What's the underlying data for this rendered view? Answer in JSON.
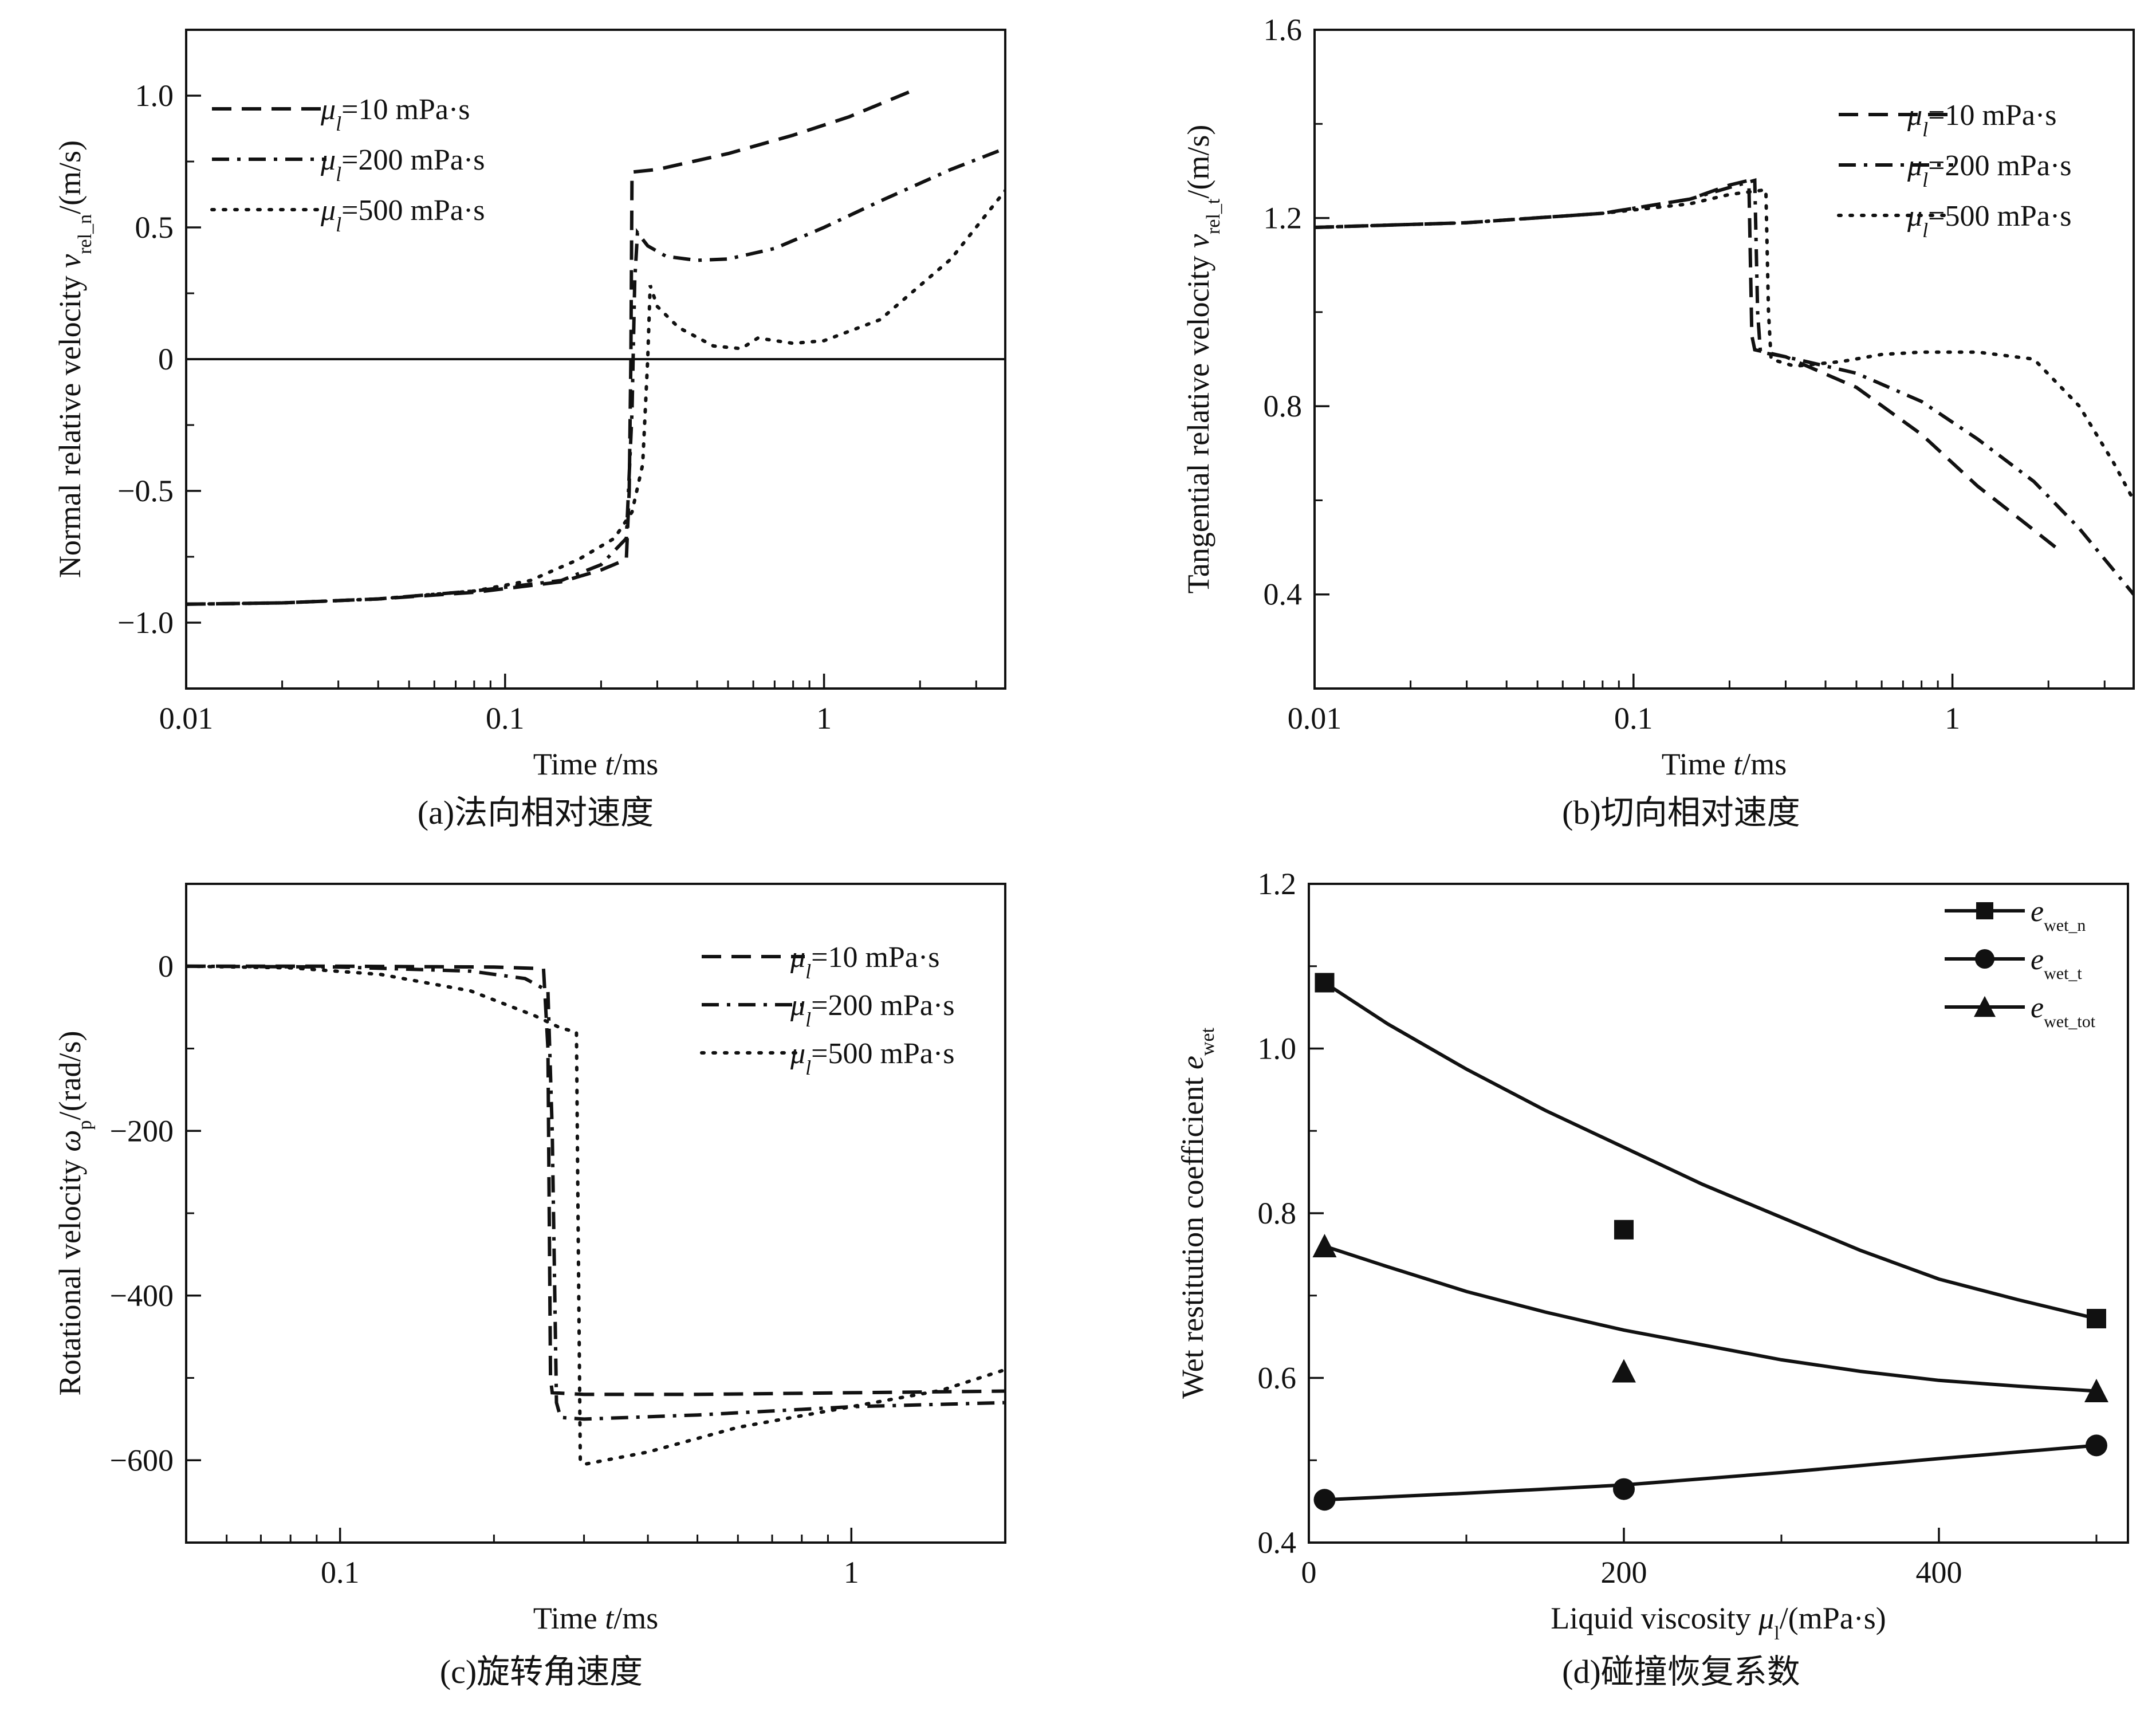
{
  "chart_data": [
    {
      "id": "a",
      "type": "line",
      "caption": "(a)法向相对速度",
      "xscale": "log",
      "xlim": [
        0.01,
        3.7
      ],
      "ylim": [
        -1.25,
        1.25
      ],
      "xticks": [
        0.01,
        0.1,
        1
      ],
      "xtick_labels": [
        "0.01",
        "0.1",
        "1"
      ],
      "yticks": [
        -1.0,
        -0.5,
        0,
        0.5,
        1.0
      ],
      "ytick_labels": [
        "−1.0",
        "−0.5",
        "0",
        "0.5",
        "1.0"
      ],
      "xlabel": {
        "pre": "Time ",
        "var": "t",
        "post": "/ms"
      },
      "ylabel": {
        "pre": "Normal relative velocity ",
        "var": "v",
        "sub": "rel_n",
        "post": "/(m/s)"
      },
      "legend_position": "top-left",
      "reference_line": 0,
      "series": [
        {
          "name": "μl=10 mPa·s",
          "legend": {
            "var": "μ",
            "sub": "l",
            "rest": "=10 mPa·s"
          },
          "style": "dash",
          "points": [
            [
              0.01,
              -0.93
            ],
            [
              0.02,
              -0.925
            ],
            [
              0.04,
              -0.91
            ],
            [
              0.08,
              -0.885
            ],
            [
              0.15,
              -0.845
            ],
            [
              0.2,
              -0.8
            ],
            [
              0.24,
              -0.76
            ],
            [
              0.245,
              -0.5
            ],
            [
              0.248,
              0.0
            ],
            [
              0.25,
              0.71
            ],
            [
              0.3,
              0.72
            ],
            [
              0.5,
              0.78
            ],
            [
              0.8,
              0.85
            ],
            [
              1.2,
              0.92
            ],
            [
              1.9,
              1.02
            ]
          ]
        },
        {
          "name": "μl=200 mPa·s",
          "legend": {
            "var": "μ",
            "sub": "l",
            "rest": "=200 mPa·s"
          },
          "style": "dashdot",
          "points": [
            [
              0.01,
              -0.93
            ],
            [
              0.02,
              -0.925
            ],
            [
              0.04,
              -0.91
            ],
            [
              0.08,
              -0.88
            ],
            [
              0.15,
              -0.84
            ],
            [
              0.2,
              -0.78
            ],
            [
              0.24,
              -0.68
            ],
            [
              0.25,
              -0.2
            ],
            [
              0.255,
              0.3
            ],
            [
              0.26,
              0.48
            ],
            [
              0.28,
              0.43
            ],
            [
              0.32,
              0.39
            ],
            [
              0.4,
              0.375
            ],
            [
              0.5,
              0.38
            ],
            [
              0.7,
              0.42
            ],
            [
              1.0,
              0.5
            ],
            [
              1.5,
              0.6
            ],
            [
              2.5,
              0.72
            ],
            [
              3.7,
              0.8
            ]
          ]
        },
        {
          "name": "μl=500 mPa·s",
          "legend": {
            "var": "μ",
            "sub": "l",
            "rest": "=500 mPa·s"
          },
          "style": "dot",
          "points": [
            [
              0.01,
              -0.93
            ],
            [
              0.02,
              -0.925
            ],
            [
              0.04,
              -0.91
            ],
            [
              0.08,
              -0.88
            ],
            [
              0.12,
              -0.84
            ],
            [
              0.17,
              -0.76
            ],
            [
              0.22,
              -0.68
            ],
            [
              0.25,
              -0.58
            ],
            [
              0.27,
              -0.4
            ],
            [
              0.28,
              0.0
            ],
            [
              0.285,
              0.28
            ],
            [
              0.3,
              0.2
            ],
            [
              0.35,
              0.12
            ],
            [
              0.45,
              0.05
            ],
            [
              0.55,
              0.04
            ],
            [
              0.62,
              0.08
            ],
            [
              0.8,
              0.06
            ],
            [
              1.0,
              0.07
            ],
            [
              1.5,
              0.15
            ],
            [
              2.5,
              0.38
            ],
            [
              3.7,
              0.64
            ]
          ]
        }
      ]
    },
    {
      "id": "b",
      "type": "line",
      "caption": "(b)切向相对速度",
      "xscale": "log",
      "xlim": [
        0.01,
        3.7
      ],
      "ylim": [
        0.2,
        1.6
      ],
      "xticks": [
        0.01,
        0.1,
        1
      ],
      "xtick_labels": [
        "0.01",
        "0.1",
        "1"
      ],
      "yticks": [
        0.4,
        0.8,
        1.2,
        1.6
      ],
      "ytick_labels": [
        "0.4",
        "0.8",
        "1.2",
        "1.6"
      ],
      "xlabel": {
        "pre": "Time ",
        "var": "t",
        "post": "/ms"
      },
      "ylabel": {
        "pre": "Tangential relative velocity ",
        "var": "v",
        "sub": "rel_t",
        "post": "/(m/s)"
      },
      "legend_position": "top-right",
      "series": [
        {
          "name": "μl=10 mPa·s",
          "legend": {
            "var": "μ",
            "sub": "l",
            "rest": "=10 mPa·s"
          },
          "style": "dash",
          "points": [
            [
              0.01,
              1.18
            ],
            [
              0.03,
              1.19
            ],
            [
              0.08,
              1.21
            ],
            [
              0.15,
              1.24
            ],
            [
              0.2,
              1.27
            ],
            [
              0.23,
              1.28
            ],
            [
              0.235,
              0.95
            ],
            [
              0.24,
              0.92
            ],
            [
              0.3,
              0.905
            ],
            [
              0.5,
              0.84
            ],
            [
              0.8,
              0.74
            ],
            [
              1.2,
              0.63
            ],
            [
              1.7,
              0.55
            ],
            [
              2.2,
              0.49
            ]
          ]
        },
        {
          "name": "μl=200 mPa·s",
          "legend": {
            "var": "μ",
            "sub": "l",
            "rest": "=200 mPa·s"
          },
          "style": "dashdot",
          "points": [
            [
              0.01,
              1.18
            ],
            [
              0.03,
              1.19
            ],
            [
              0.08,
              1.21
            ],
            [
              0.15,
              1.24
            ],
            [
              0.2,
              1.265
            ],
            [
              0.24,
              1.28
            ],
            [
              0.245,
              1.0
            ],
            [
              0.25,
              0.915
            ],
            [
              0.3,
              0.905
            ],
            [
              0.5,
              0.87
            ],
            [
              0.8,
              0.81
            ],
            [
              1.2,
              0.73
            ],
            [
              1.8,
              0.64
            ],
            [
              2.5,
              0.54
            ],
            [
              3.7,
              0.4
            ]
          ]
        },
        {
          "name": "μl=500 mPa·s",
          "legend": {
            "var": "μ",
            "sub": "l",
            "rest": "=500 mPa·s"
          },
          "style": "dot",
          "points": [
            [
              0.01,
              1.18
            ],
            [
              0.03,
              1.19
            ],
            [
              0.08,
              1.21
            ],
            [
              0.15,
              1.23
            ],
            [
              0.2,
              1.25
            ],
            [
              0.26,
              1.26
            ],
            [
              0.265,
              1.0
            ],
            [
              0.27,
              0.9
            ],
            [
              0.32,
              0.885
            ],
            [
              0.45,
              0.895
            ],
            [
              0.6,
              0.91
            ],
            [
              0.8,
              0.915
            ],
            [
              1.2,
              0.915
            ],
            [
              1.8,
              0.9
            ],
            [
              2.5,
              0.8
            ],
            [
              3.2,
              0.68
            ],
            [
              3.7,
              0.6
            ]
          ]
        }
      ]
    },
    {
      "id": "c",
      "type": "line",
      "caption": "(c)旋转角速度",
      "xscale": "log",
      "xlim": [
        0.05,
        2.0
      ],
      "ylim": [
        -700,
        100
      ],
      "xticks": [
        0.1,
        1
      ],
      "xtick_labels": [
        "0.1",
        "1"
      ],
      "yticks": [
        -600,
        -400,
        -200,
        0
      ],
      "ytick_labels": [
        "−600",
        "−400",
        "−200",
        "0"
      ],
      "xlabel": {
        "pre": "Time ",
        "var": "t",
        "post": "/ms"
      },
      "ylabel": {
        "pre": "Rotational velocity ",
        "var": "ω",
        "sub": "p",
        "post": "/(rad/s)"
      },
      "legend_position": "top-right",
      "series": [
        {
          "name": "μl=10 mPa·s",
          "legend": {
            "var": "μ",
            "sub": "l",
            "rest": "=10 mPa·s"
          },
          "style": "dash",
          "points": [
            [
              0.05,
              0
            ],
            [
              0.1,
              0
            ],
            [
              0.2,
              -1
            ],
            [
              0.25,
              -3
            ],
            [
              0.255,
              -100
            ],
            [
              0.258,
              -500
            ],
            [
              0.26,
              -518
            ],
            [
              0.3,
              -520
            ],
            [
              0.5,
              -520
            ],
            [
              1.0,
              -518
            ],
            [
              2.0,
              -516
            ]
          ]
        },
        {
          "name": "μl=200 mPa·s",
          "legend": {
            "var": "μ",
            "sub": "l",
            "rest": "=200 mPa·s"
          },
          "style": "dashdot",
          "points": [
            [
              0.05,
              0
            ],
            [
              0.1,
              -1
            ],
            [
              0.18,
              -6
            ],
            [
              0.23,
              -15
            ],
            [
              0.255,
              -30
            ],
            [
              0.26,
              -200
            ],
            [
              0.265,
              -530
            ],
            [
              0.27,
              -548
            ],
            [
              0.3,
              -550
            ],
            [
              0.5,
              -545
            ],
            [
              1.0,
              -535
            ],
            [
              2.0,
              -530
            ]
          ]
        },
        {
          "name": "μl=500 mPa·s",
          "legend": {
            "var": "μ",
            "sub": "l",
            "rest": "=500 mPa·s"
          },
          "style": "dot",
          "points": [
            [
              0.05,
              0
            ],
            [
              0.08,
              -2
            ],
            [
              0.12,
              -10
            ],
            [
              0.18,
              -30
            ],
            [
              0.24,
              -60
            ],
            [
              0.27,
              -75
            ],
            [
              0.29,
              -80
            ],
            [
              0.292,
              -300
            ],
            [
              0.295,
              -600
            ],
            [
              0.3,
              -605
            ],
            [
              0.4,
              -590
            ],
            [
              0.6,
              -560
            ],
            [
              1.0,
              -535
            ],
            [
              1.5,
              -515
            ],
            [
              2.0,
              -490
            ]
          ]
        }
      ]
    },
    {
      "id": "d",
      "type": "scatter",
      "caption": "(d)碰撞恢复系数",
      "xscale": "linear",
      "xlim": [
        0,
        520
      ],
      "ylim": [
        0.4,
        1.2
      ],
      "xticks": [
        0,
        200,
        400
      ],
      "xtick_labels": [
        "0",
        "200",
        "400"
      ],
      "yticks": [
        0.4,
        0.6,
        0.8,
        1.0,
        1.2
      ],
      "ytick_labels": [
        "0.4",
        "0.6",
        "0.8",
        "1.0",
        "1.2"
      ],
      "xlabel": {
        "pre": "Liquid viscosity ",
        "var": "μ",
        "sub": "l",
        "post": "/(mPa·s)"
      },
      "ylabel": {
        "pre": "Wet restitution coefficient ",
        "var": "e",
        "sub": "wet",
        "post": ""
      },
      "legend_position": "top-right",
      "series": [
        {
          "name": "e_wet_n",
          "legend": {
            "var": "e",
            "sub": "wet_n",
            "rest": ""
          },
          "marker": "square",
          "x": [
            10,
            200,
            500
          ],
          "y": [
            1.08,
            0.78,
            0.672
          ],
          "fit": [
            [
              10,
              1.08
            ],
            [
              50,
              1.03
            ],
            [
              100,
              0.975
            ],
            [
              150,
              0.925
            ],
            [
              200,
              0.88
            ],
            [
              250,
              0.835
            ],
            [
              300,
              0.795
            ],
            [
              350,
              0.755
            ],
            [
              400,
              0.72
            ],
            [
              450,
              0.695
            ],
            [
              500,
              0.672
            ]
          ]
        },
        {
          "name": "e_wet_t",
          "legend": {
            "var": "e",
            "sub": "wet_t",
            "rest": ""
          },
          "marker": "circle",
          "x": [
            10,
            200,
            500
          ],
          "y": [
            0.452,
            0.465,
            0.518
          ],
          "fit": [
            [
              10,
              0.452
            ],
            [
              100,
              0.46
            ],
            [
              200,
              0.47
            ],
            [
              300,
              0.485
            ],
            [
              400,
              0.502
            ],
            [
              500,
              0.518
            ]
          ]
        },
        {
          "name": "e_wet_tot",
          "legend": {
            "var": "e",
            "sub": "wet_tot",
            "rest": ""
          },
          "marker": "triangle",
          "x": [
            10,
            200,
            500
          ],
          "y": [
            0.76,
            0.608,
            0.584
          ],
          "fit": [
            [
              10,
              0.76
            ],
            [
              50,
              0.735
            ],
            [
              100,
              0.705
            ],
            [
              150,
              0.68
            ],
            [
              200,
              0.658
            ],
            [
              250,
              0.64
            ],
            [
              300,
              0.622
            ],
            [
              350,
              0.608
            ],
            [
              400,
              0.597
            ],
            [
              450,
              0.59
            ],
            [
              500,
              0.584
            ]
          ]
        }
      ]
    }
  ]
}
